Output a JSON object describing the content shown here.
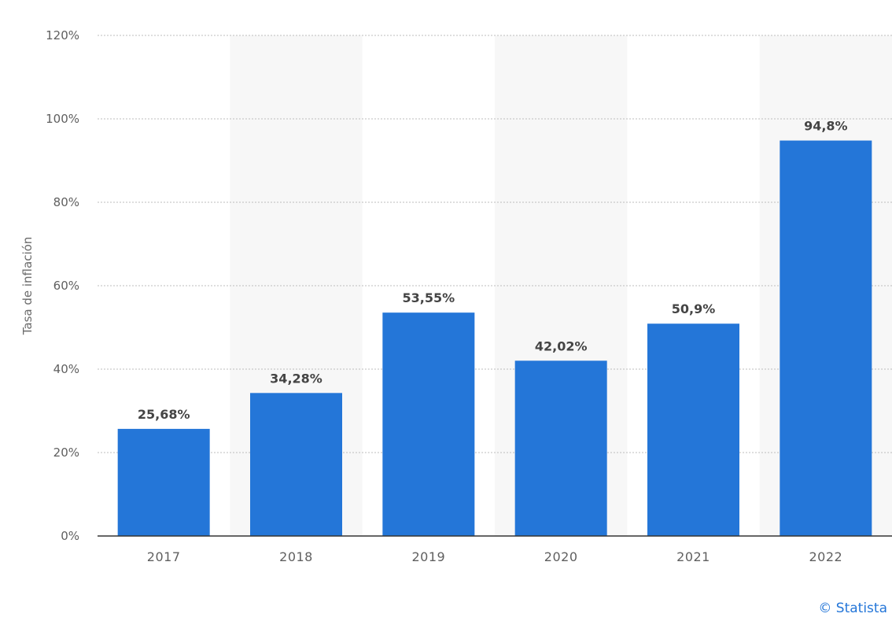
{
  "chart_data": {
    "type": "bar",
    "categories": [
      "2017",
      "2018",
      "2019",
      "2020",
      "2021",
      "2022"
    ],
    "values": [
      25.68,
      34.28,
      53.55,
      42.02,
      50.9,
      94.8
    ],
    "value_labels": [
      "25,68%",
      "34,28%",
      "53,55%",
      "42,02%",
      "50,9%",
      "94,8%"
    ],
    "ylabel": "Tasa de inflación",
    "ylim": [
      0,
      120
    ],
    "yticks": [
      0,
      20,
      40,
      60,
      80,
      100,
      120
    ],
    "ytick_labels": [
      "0%",
      "20%",
      "40%",
      "60%",
      "80%",
      "100%",
      "120%"
    ],
    "grid": true,
    "alternate_column_shading": true,
    "colors": {
      "bar": "#2476d8",
      "shade": "#f7f7f7",
      "grid": "#bdbdbd",
      "axis": "#333333"
    }
  },
  "credit": "© Statista"
}
